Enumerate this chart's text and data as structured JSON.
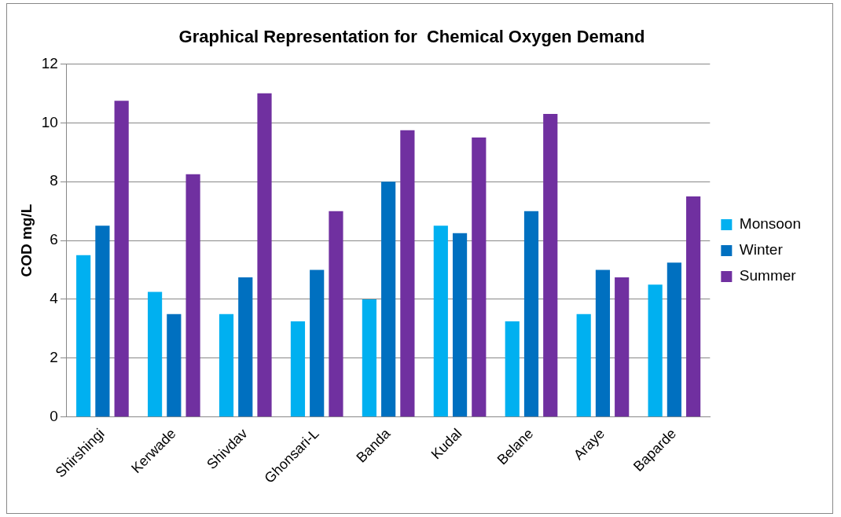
{
  "chart_data": {
    "type": "bar",
    "title": "Graphical Representation for  Chemical Oxygen Demand",
    "ylabel": "COD mg/L",
    "categories": [
      "Shirshingi",
      "Kerwade",
      "Shivdav",
      "Ghonsari-L",
      "Banda",
      "Kudal",
      "Belane",
      "Araye",
      "Baparde"
    ],
    "series": [
      {
        "name": "Monsoon",
        "color": "#00b0f0",
        "values": [
          5.5,
          4.25,
          3.5,
          3.25,
          4,
          6.5,
          3.25,
          3.5,
          4.5
        ]
      },
      {
        "name": "Winter",
        "color": "#0070c0",
        "values": [
          6.5,
          3.5,
          4.75,
          5,
          8,
          6.25,
          7,
          5,
          5.25
        ]
      },
      {
        "name": "Summer",
        "color": "#7030a0",
        "values": [
          10.75,
          8.25,
          11,
          7,
          9.75,
          9.5,
          10.3,
          4.75,
          7.5
        ]
      }
    ],
    "ylim": [
      0,
      12
    ],
    "yticks": [
      0,
      2,
      4,
      6,
      8,
      10,
      12
    ],
    "grid": "y",
    "legend": "right"
  }
}
